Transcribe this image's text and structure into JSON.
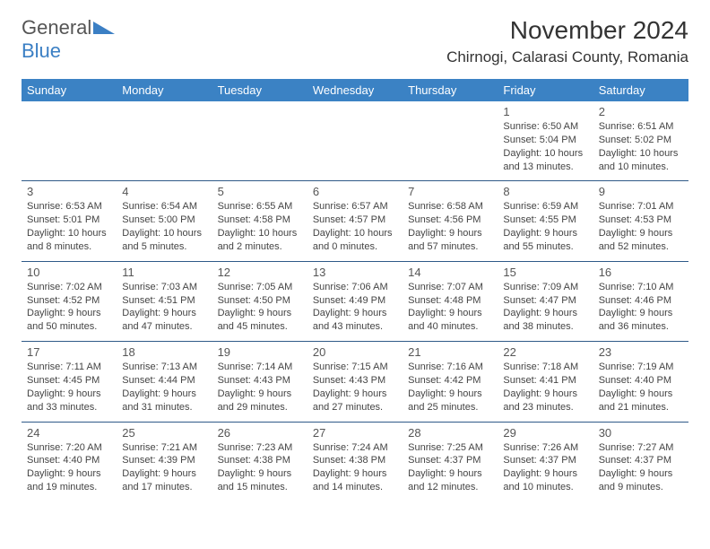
{
  "logo": {
    "text1": "General",
    "text2": "Blue"
  },
  "title": "November 2024",
  "location": "Chirnogi, Calarasi County, Romania",
  "colors": {
    "header_bg": "#3b82c4",
    "header_text": "#ffffff",
    "row_border": "#2f5a88",
    "logo_accent": "#3b7fc4",
    "logo_gray": "#555555",
    "body_text": "#444444"
  },
  "weekdays": [
    "Sunday",
    "Monday",
    "Tuesday",
    "Wednesday",
    "Thursday",
    "Friday",
    "Saturday"
  ],
  "weeks": [
    [
      null,
      null,
      null,
      null,
      null,
      {
        "day": "1",
        "sunrise": "6:50 AM",
        "sunset": "5:04 PM",
        "daylight": "10 hours and 13 minutes."
      },
      {
        "day": "2",
        "sunrise": "6:51 AM",
        "sunset": "5:02 PM",
        "daylight": "10 hours and 10 minutes."
      }
    ],
    [
      {
        "day": "3",
        "sunrise": "6:53 AM",
        "sunset": "5:01 PM",
        "daylight": "10 hours and 8 minutes."
      },
      {
        "day": "4",
        "sunrise": "6:54 AM",
        "sunset": "5:00 PM",
        "daylight": "10 hours and 5 minutes."
      },
      {
        "day": "5",
        "sunrise": "6:55 AM",
        "sunset": "4:58 PM",
        "daylight": "10 hours and 2 minutes."
      },
      {
        "day": "6",
        "sunrise": "6:57 AM",
        "sunset": "4:57 PM",
        "daylight": "10 hours and 0 minutes."
      },
      {
        "day": "7",
        "sunrise": "6:58 AM",
        "sunset": "4:56 PM",
        "daylight": "9 hours and 57 minutes."
      },
      {
        "day": "8",
        "sunrise": "6:59 AM",
        "sunset": "4:55 PM",
        "daylight": "9 hours and 55 minutes."
      },
      {
        "day": "9",
        "sunrise": "7:01 AM",
        "sunset": "4:53 PM",
        "daylight": "9 hours and 52 minutes."
      }
    ],
    [
      {
        "day": "10",
        "sunrise": "7:02 AM",
        "sunset": "4:52 PM",
        "daylight": "9 hours and 50 minutes."
      },
      {
        "day": "11",
        "sunrise": "7:03 AM",
        "sunset": "4:51 PM",
        "daylight": "9 hours and 47 minutes."
      },
      {
        "day": "12",
        "sunrise": "7:05 AM",
        "sunset": "4:50 PM",
        "daylight": "9 hours and 45 minutes."
      },
      {
        "day": "13",
        "sunrise": "7:06 AM",
        "sunset": "4:49 PM",
        "daylight": "9 hours and 43 minutes."
      },
      {
        "day": "14",
        "sunrise": "7:07 AM",
        "sunset": "4:48 PM",
        "daylight": "9 hours and 40 minutes."
      },
      {
        "day": "15",
        "sunrise": "7:09 AM",
        "sunset": "4:47 PM",
        "daylight": "9 hours and 38 minutes."
      },
      {
        "day": "16",
        "sunrise": "7:10 AM",
        "sunset": "4:46 PM",
        "daylight": "9 hours and 36 minutes."
      }
    ],
    [
      {
        "day": "17",
        "sunrise": "7:11 AM",
        "sunset": "4:45 PM",
        "daylight": "9 hours and 33 minutes."
      },
      {
        "day": "18",
        "sunrise": "7:13 AM",
        "sunset": "4:44 PM",
        "daylight": "9 hours and 31 minutes."
      },
      {
        "day": "19",
        "sunrise": "7:14 AM",
        "sunset": "4:43 PM",
        "daylight": "9 hours and 29 minutes."
      },
      {
        "day": "20",
        "sunrise": "7:15 AM",
        "sunset": "4:43 PM",
        "daylight": "9 hours and 27 minutes."
      },
      {
        "day": "21",
        "sunrise": "7:16 AM",
        "sunset": "4:42 PM",
        "daylight": "9 hours and 25 minutes."
      },
      {
        "day": "22",
        "sunrise": "7:18 AM",
        "sunset": "4:41 PM",
        "daylight": "9 hours and 23 minutes."
      },
      {
        "day": "23",
        "sunrise": "7:19 AM",
        "sunset": "4:40 PM",
        "daylight": "9 hours and 21 minutes."
      }
    ],
    [
      {
        "day": "24",
        "sunrise": "7:20 AM",
        "sunset": "4:40 PM",
        "daylight": "9 hours and 19 minutes."
      },
      {
        "day": "25",
        "sunrise": "7:21 AM",
        "sunset": "4:39 PM",
        "daylight": "9 hours and 17 minutes."
      },
      {
        "day": "26",
        "sunrise": "7:23 AM",
        "sunset": "4:38 PM",
        "daylight": "9 hours and 15 minutes."
      },
      {
        "day": "27",
        "sunrise": "7:24 AM",
        "sunset": "4:38 PM",
        "daylight": "9 hours and 14 minutes."
      },
      {
        "day": "28",
        "sunrise": "7:25 AM",
        "sunset": "4:37 PM",
        "daylight": "9 hours and 12 minutes."
      },
      {
        "day": "29",
        "sunrise": "7:26 AM",
        "sunset": "4:37 PM",
        "daylight": "9 hours and 10 minutes."
      },
      {
        "day": "30",
        "sunrise": "7:27 AM",
        "sunset": "4:37 PM",
        "daylight": "9 hours and 9 minutes."
      }
    ]
  ]
}
